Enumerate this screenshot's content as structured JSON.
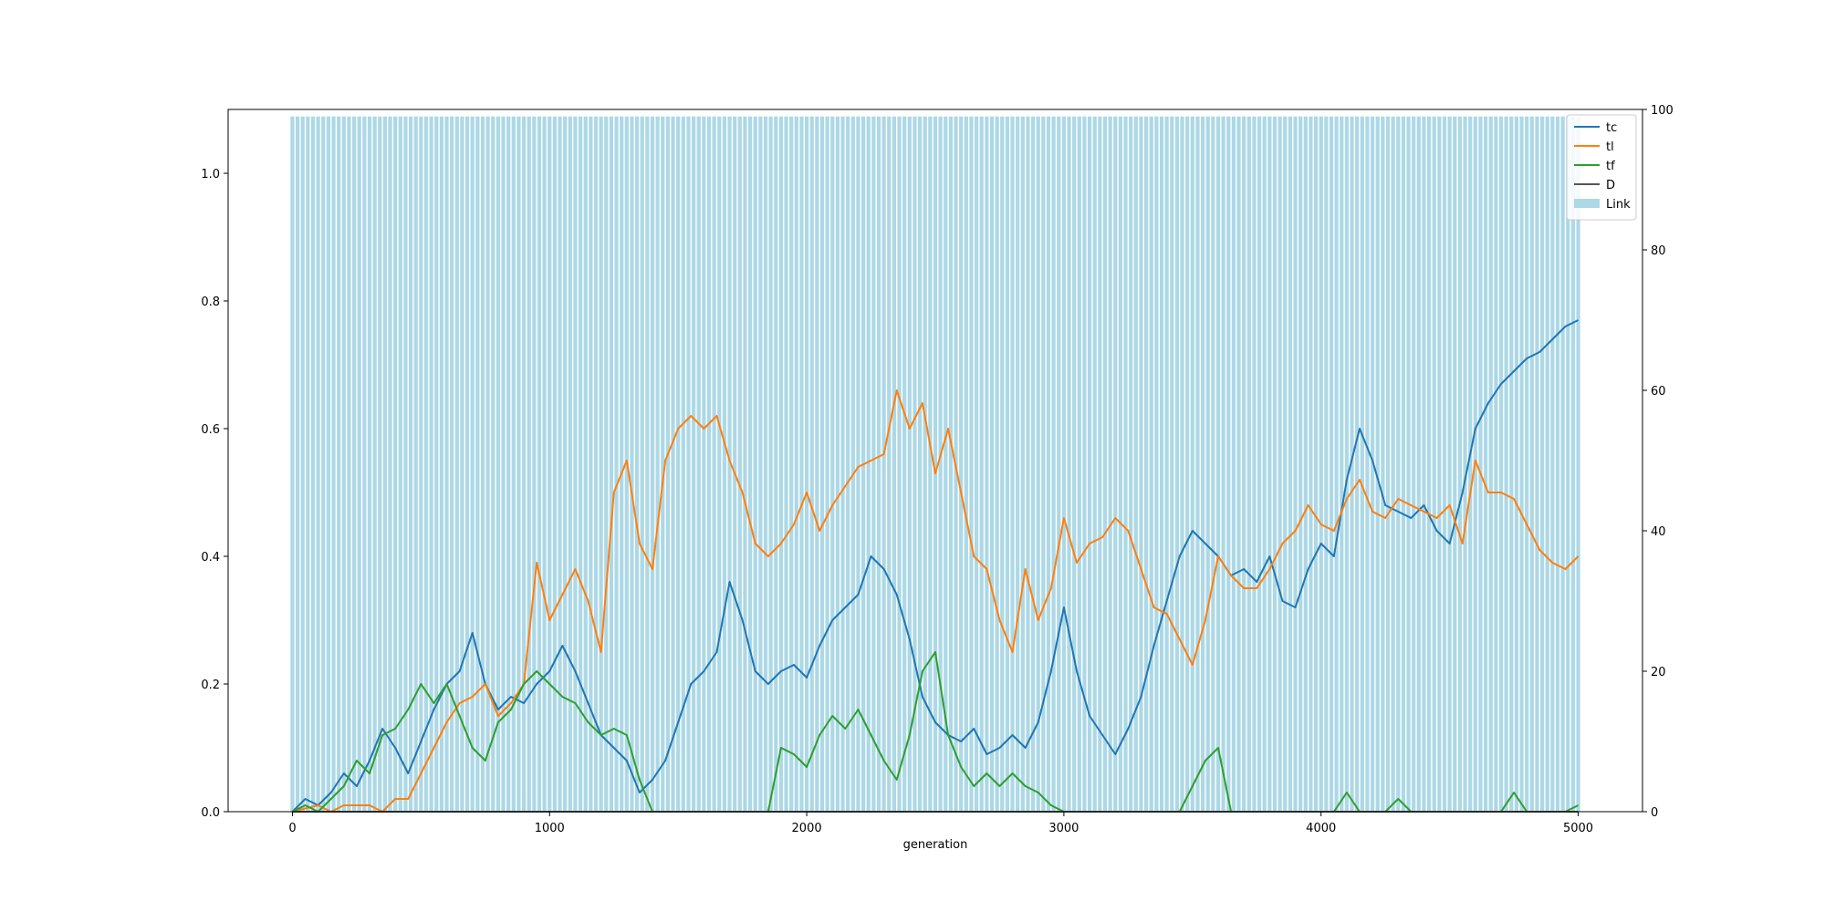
{
  "chart_data": {
    "type": "line",
    "xlabel": "generation",
    "x_ticks": [
      0,
      1000,
      2000,
      3000,
      4000,
      5000
    ],
    "xlim": [
      -250,
      5250
    ],
    "y_left": {
      "ylim": [
        0,
        1.1
      ],
      "ticks": [
        "0.0",
        "0.2",
        "0.4",
        "0.6",
        "0.8",
        "1.0"
      ]
    },
    "y_right": {
      "ylim": [
        0,
        100
      ],
      "ticks": [
        "0",
        "20",
        "40",
        "60",
        "80",
        "100"
      ]
    },
    "legend_position": "top-right",
    "bar_series": {
      "name": "Link",
      "color": "#add8e6",
      "axis": "right",
      "x_start": 0,
      "x_end": 5000,
      "x_step": 20,
      "value": 99
    },
    "series": [
      {
        "name": "tc",
        "color": "#1f77b4",
        "points": [
          [
            0,
            0
          ],
          [
            50,
            0.02
          ],
          [
            100,
            0.01
          ],
          [
            150,
            0.03
          ],
          [
            200,
            0.06
          ],
          [
            250,
            0.04
          ],
          [
            300,
            0.08
          ],
          [
            350,
            0.13
          ],
          [
            400,
            0.1
          ],
          [
            450,
            0.06
          ],
          [
            500,
            0.11
          ],
          [
            550,
            0.16
          ],
          [
            600,
            0.2
          ],
          [
            650,
            0.22
          ],
          [
            700,
            0.28
          ],
          [
            750,
            0.2
          ],
          [
            800,
            0.16
          ],
          [
            850,
            0.18
          ],
          [
            900,
            0.17
          ],
          [
            950,
            0.2
          ],
          [
            1000,
            0.22
          ],
          [
            1050,
            0.26
          ],
          [
            1100,
            0.22
          ],
          [
            1150,
            0.17
          ],
          [
            1200,
            0.12
          ],
          [
            1250,
            0.1
          ],
          [
            1300,
            0.08
          ],
          [
            1350,
            0.03
          ],
          [
            1400,
            0.05
          ],
          [
            1450,
            0.08
          ],
          [
            1500,
            0.14
          ],
          [
            1550,
            0.2
          ],
          [
            1600,
            0.22
          ],
          [
            1650,
            0.25
          ],
          [
            1700,
            0.36
          ],
          [
            1750,
            0.3
          ],
          [
            1800,
            0.22
          ],
          [
            1850,
            0.2
          ],
          [
            1900,
            0.22
          ],
          [
            1950,
            0.23
          ],
          [
            2000,
            0.21
          ],
          [
            2050,
            0.26
          ],
          [
            2100,
            0.3
          ],
          [
            2150,
            0.32
          ],
          [
            2200,
            0.34
          ],
          [
            2250,
            0.4
          ],
          [
            2300,
            0.38
          ],
          [
            2350,
            0.34
          ],
          [
            2400,
            0.27
          ],
          [
            2450,
            0.18
          ],
          [
            2500,
            0.14
          ],
          [
            2550,
            0.12
          ],
          [
            2600,
            0.11
          ],
          [
            2650,
            0.13
          ],
          [
            2700,
            0.09
          ],
          [
            2750,
            0.1
          ],
          [
            2800,
            0.12
          ],
          [
            2850,
            0.1
          ],
          [
            2900,
            0.14
          ],
          [
            2950,
            0.22
          ],
          [
            3000,
            0.32
          ],
          [
            3050,
            0.22
          ],
          [
            3100,
            0.15
          ],
          [
            3150,
            0.12
          ],
          [
            3200,
            0.09
          ],
          [
            3250,
            0.13
          ],
          [
            3300,
            0.18
          ],
          [
            3350,
            0.26
          ],
          [
            3400,
            0.33
          ],
          [
            3450,
            0.4
          ],
          [
            3500,
            0.44
          ],
          [
            3550,
            0.42
          ],
          [
            3600,
            0.4
          ],
          [
            3650,
            0.37
          ],
          [
            3700,
            0.38
          ],
          [
            3750,
            0.36
          ],
          [
            3800,
            0.4
          ],
          [
            3850,
            0.33
          ],
          [
            3900,
            0.32
          ],
          [
            3950,
            0.38
          ],
          [
            4000,
            0.42
          ],
          [
            4050,
            0.4
          ],
          [
            4100,
            0.52
          ],
          [
            4150,
            0.6
          ],
          [
            4200,
            0.55
          ],
          [
            4250,
            0.48
          ],
          [
            4300,
            0.47
          ],
          [
            4350,
            0.46
          ],
          [
            4400,
            0.48
          ],
          [
            4450,
            0.44
          ],
          [
            4500,
            0.42
          ],
          [
            4550,
            0.5
          ],
          [
            4600,
            0.6
          ],
          [
            4650,
            0.64
          ],
          [
            4700,
            0.67
          ],
          [
            4750,
            0.69
          ],
          [
            4800,
            0.71
          ],
          [
            4850,
            0.72
          ],
          [
            4900,
            0.74
          ],
          [
            4950,
            0.76
          ],
          [
            5000,
            0.77
          ]
        ]
      },
      {
        "name": "tl",
        "color": "#ff7f0e",
        "points": [
          [
            0,
            0
          ],
          [
            100,
            0.01
          ],
          [
            150,
            0
          ],
          [
            200,
            0.01
          ],
          [
            300,
            0.01
          ],
          [
            350,
            0
          ],
          [
            400,
            0.02
          ],
          [
            450,
            0.02
          ],
          [
            500,
            0.06
          ],
          [
            550,
            0.1
          ],
          [
            600,
            0.14
          ],
          [
            650,
            0.17
          ],
          [
            700,
            0.18
          ],
          [
            750,
            0.2
          ],
          [
            800,
            0.15
          ],
          [
            850,
            0.17
          ],
          [
            900,
            0.2
          ],
          [
            950,
            0.39
          ],
          [
            1000,
            0.3
          ],
          [
            1050,
            0.34
          ],
          [
            1100,
            0.38
          ],
          [
            1150,
            0.33
          ],
          [
            1200,
            0.25
          ],
          [
            1250,
            0.5
          ],
          [
            1300,
            0.55
          ],
          [
            1350,
            0.42
          ],
          [
            1400,
            0.38
          ],
          [
            1450,
            0.55
          ],
          [
            1500,
            0.6
          ],
          [
            1550,
            0.62
          ],
          [
            1600,
            0.6
          ],
          [
            1650,
            0.62
          ],
          [
            1700,
            0.55
          ],
          [
            1750,
            0.5
          ],
          [
            1800,
            0.42
          ],
          [
            1850,
            0.4
          ],
          [
            1900,
            0.42
          ],
          [
            1950,
            0.45
          ],
          [
            2000,
            0.5
          ],
          [
            2050,
            0.44
          ],
          [
            2100,
            0.48
          ],
          [
            2150,
            0.51
          ],
          [
            2200,
            0.54
          ],
          [
            2250,
            0.55
          ],
          [
            2300,
            0.56
          ],
          [
            2350,
            0.66
          ],
          [
            2400,
            0.6
          ],
          [
            2450,
            0.64
          ],
          [
            2500,
            0.53
          ],
          [
            2550,
            0.6
          ],
          [
            2600,
            0.5
          ],
          [
            2650,
            0.4
          ],
          [
            2700,
            0.38
          ],
          [
            2750,
            0.3
          ],
          [
            2800,
            0.25
          ],
          [
            2850,
            0.38
          ],
          [
            2900,
            0.3
          ],
          [
            2950,
            0.35
          ],
          [
            3000,
            0.46
          ],
          [
            3050,
            0.39
          ],
          [
            3100,
            0.42
          ],
          [
            3150,
            0.43
          ],
          [
            3200,
            0.46
          ],
          [
            3250,
            0.44
          ],
          [
            3300,
            0.38
          ],
          [
            3350,
            0.32
          ],
          [
            3400,
            0.31
          ],
          [
            3450,
            0.27
          ],
          [
            3500,
            0.23
          ],
          [
            3550,
            0.3
          ],
          [
            3600,
            0.4
          ],
          [
            3650,
            0.37
          ],
          [
            3700,
            0.35
          ],
          [
            3750,
            0.35
          ],
          [
            3800,
            0.38
          ],
          [
            3850,
            0.42
          ],
          [
            3900,
            0.44
          ],
          [
            3950,
            0.48
          ],
          [
            4000,
            0.45
          ],
          [
            4050,
            0.44
          ],
          [
            4100,
            0.49
          ],
          [
            4150,
            0.52
          ],
          [
            4200,
            0.47
          ],
          [
            4250,
            0.46
          ],
          [
            4300,
            0.49
          ],
          [
            4350,
            0.48
          ],
          [
            4400,
            0.47
          ],
          [
            4450,
            0.46
          ],
          [
            4500,
            0.48
          ],
          [
            4550,
            0.42
          ],
          [
            4600,
            0.55
          ],
          [
            4650,
            0.5
          ],
          [
            4700,
            0.5
          ],
          [
            4750,
            0.49
          ],
          [
            4800,
            0.45
          ],
          [
            4850,
            0.41
          ],
          [
            4900,
            0.39
          ],
          [
            4950,
            0.38
          ],
          [
            5000,
            0.4
          ]
        ]
      },
      {
        "name": "tf",
        "color": "#2ca02c",
        "points": [
          [
            0,
            0
          ],
          [
            50,
            0.01
          ],
          [
            100,
            0
          ],
          [
            150,
            0.02
          ],
          [
            200,
            0.04
          ],
          [
            250,
            0.08
          ],
          [
            300,
            0.06
          ],
          [
            350,
            0.12
          ],
          [
            400,
            0.13
          ],
          [
            450,
            0.16
          ],
          [
            500,
            0.2
          ],
          [
            550,
            0.17
          ],
          [
            600,
            0.2
          ],
          [
            650,
            0.15
          ],
          [
            700,
            0.1
          ],
          [
            750,
            0.08
          ],
          [
            800,
            0.14
          ],
          [
            850,
            0.16
          ],
          [
            900,
            0.2
          ],
          [
            950,
            0.22
          ],
          [
            1000,
            0.2
          ],
          [
            1050,
            0.18
          ],
          [
            1100,
            0.17
          ],
          [
            1150,
            0.14
          ],
          [
            1200,
            0.12
          ],
          [
            1250,
            0.13
          ],
          [
            1300,
            0.12
          ],
          [
            1350,
            0.05
          ],
          [
            1400,
            0
          ],
          [
            1850,
            0
          ],
          [
            1900,
            0.1
          ],
          [
            1950,
            0.09
          ],
          [
            2000,
            0.07
          ],
          [
            2050,
            0.12
          ],
          [
            2100,
            0.15
          ],
          [
            2150,
            0.13
          ],
          [
            2200,
            0.16
          ],
          [
            2250,
            0.12
          ],
          [
            2300,
            0.08
          ],
          [
            2350,
            0.05
          ],
          [
            2400,
            0.12
          ],
          [
            2450,
            0.22
          ],
          [
            2500,
            0.25
          ],
          [
            2550,
            0.12
          ],
          [
            2600,
            0.07
          ],
          [
            2650,
            0.04
          ],
          [
            2700,
            0.06
          ],
          [
            2750,
            0.04
          ],
          [
            2800,
            0.06
          ],
          [
            2850,
            0.04
          ],
          [
            2900,
            0.03
          ],
          [
            2950,
            0.01
          ],
          [
            3000,
            0
          ],
          [
            3450,
            0
          ],
          [
            3500,
            0.04
          ],
          [
            3550,
            0.08
          ],
          [
            3600,
            0.1
          ],
          [
            3650,
            0
          ],
          [
            4050,
            0
          ],
          [
            4100,
            0.03
          ],
          [
            4150,
            0
          ],
          [
            4250,
            0
          ],
          [
            4300,
            0.02
          ],
          [
            4350,
            0
          ],
          [
            4700,
            0
          ],
          [
            4750,
            0.03
          ],
          [
            4800,
            0
          ],
          [
            4950,
            0
          ],
          [
            5000,
            0.01
          ]
        ]
      },
      {
        "name": "D",
        "color": "#555555",
        "points": [
          [
            0,
            0
          ],
          [
            5000,
            0
          ]
        ]
      }
    ]
  }
}
